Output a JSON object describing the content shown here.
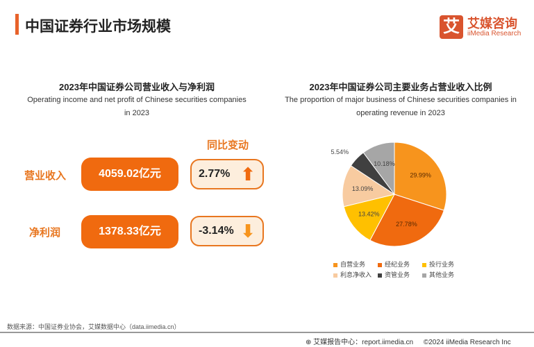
{
  "header": {
    "title": "中国证券行业市场规模",
    "logo_cn": "艾媒咨询",
    "logo_en": "iiMedia Research",
    "logo_mark": "艾"
  },
  "left": {
    "title": "2023年中国证券公司营业收入与净利润",
    "subtitle_line1": "Operating income and net profit of Chinese securities companies",
    "subtitle_line2": "in 2023",
    "change_header": "同比变动",
    "rows": [
      {
        "label": "营业收入",
        "value": "4059.02亿元",
        "change": "2.77%",
        "direction": "up"
      },
      {
        "label": "净利润",
        "value": "1378.33亿元",
        "change": "-3.14%",
        "direction": "down"
      }
    ]
  },
  "chart_data": {
    "type": "pie",
    "title": "2023年中国证券公司主要业务占营业收入比例",
    "subtitle_line1": "The proportion of major business of Chinese securities companies in",
    "subtitle_line2": "operating revenue in 2023",
    "categories": [
      "自营业务",
      "经纪业务",
      "投行业务",
      "利息净收入",
      "资管业务",
      "其他业务"
    ],
    "values": [
      29.99,
      27.78,
      13.42,
      13.09,
      5.54,
      10.18
    ],
    "labels": [
      "29.99%",
      "27.78%",
      "13.42%",
      "13.09%",
      "5.54%",
      "10.18%"
    ],
    "colors": [
      "#f7941d",
      "#f06a0f",
      "#ffc000",
      "#f8cba0",
      "#404040",
      "#a6a6a6"
    ],
    "legend_position": "bottom"
  },
  "footer": {
    "source": "数据来源：中国证券业协会，艾媒数据中心（data.iimedia.cn）",
    "report": "艾媒报告中心：report.iimedia.cn",
    "copyright": "©2024  iiMedia Research Inc"
  }
}
